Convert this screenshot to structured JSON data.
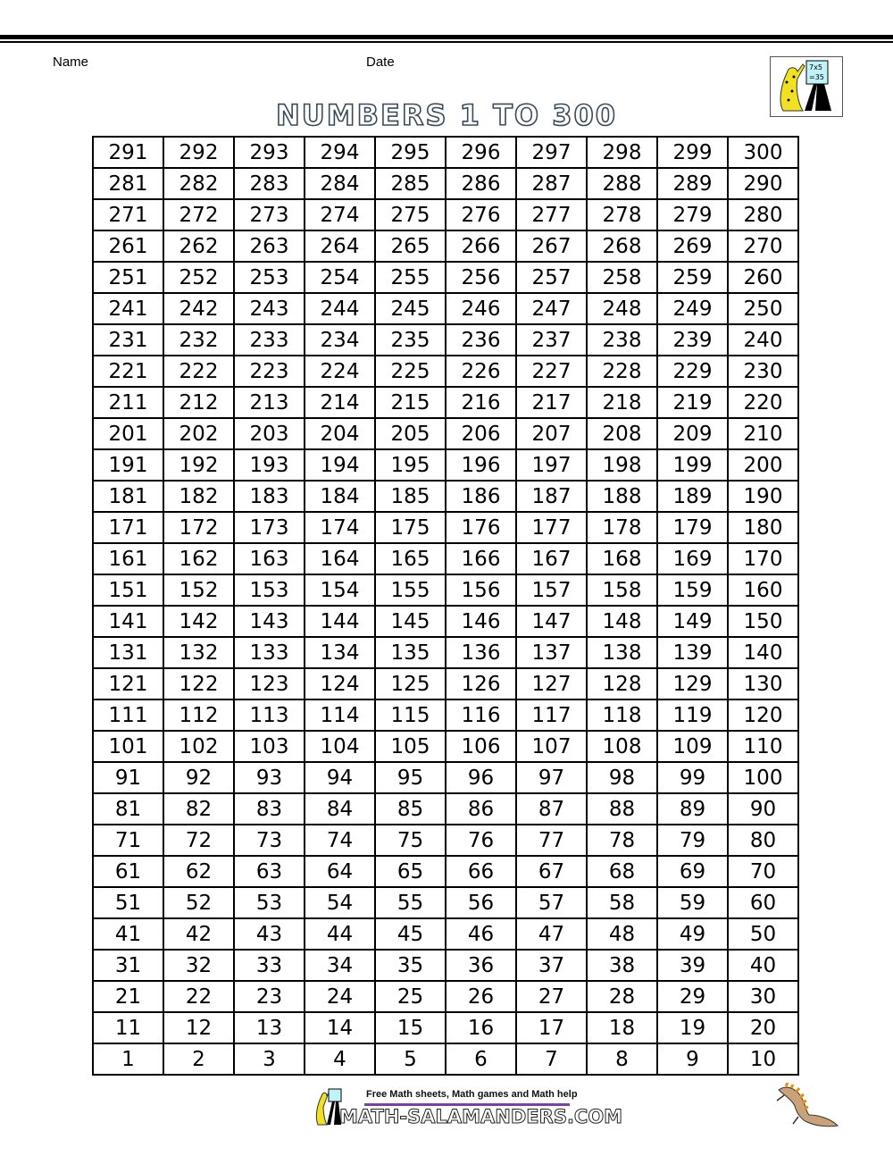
{
  "header": {
    "name_label": "Name",
    "date_label": "Date",
    "logo_text": "7x5 =35"
  },
  "title": "NUMBERS 1 TO 300",
  "table": {
    "rows": [
      [
        "291",
        "292",
        "293",
        "294",
        "295",
        "296",
        "297",
        "298",
        "299",
        "300"
      ],
      [
        "281",
        "282",
        "283",
        "284",
        "285",
        "286",
        "287",
        "288",
        "289",
        "290"
      ],
      [
        "271",
        "272",
        "273",
        "274",
        "275",
        "276",
        "277",
        "278",
        "279",
        "280"
      ],
      [
        "261",
        "262",
        "263",
        "264",
        "265",
        "266",
        "267",
        "268",
        "269",
        "270"
      ],
      [
        "251",
        "252",
        "253",
        "254",
        "255",
        "256",
        "257",
        "258",
        "259",
        "260"
      ],
      [
        "241",
        "242",
        "243",
        "244",
        "245",
        "246",
        "247",
        "248",
        "249",
        "250"
      ],
      [
        "231",
        "232",
        "233",
        "234",
        "235",
        "236",
        "237",
        "238",
        "239",
        "240"
      ],
      [
        "221",
        "222",
        "223",
        "224",
        "225",
        "226",
        "227",
        "228",
        "229",
        "230"
      ],
      [
        "211",
        "212",
        "213",
        "214",
        "215",
        "216",
        "217",
        "218",
        "219",
        "220"
      ],
      [
        "201",
        "202",
        "203",
        "204",
        "205",
        "206",
        "207",
        "208",
        "209",
        "210"
      ],
      [
        "191",
        "192",
        "193",
        "194",
        "195",
        "196",
        "197",
        "198",
        "199",
        "200"
      ],
      [
        "181",
        "182",
        "183",
        "184",
        "185",
        "186",
        "187",
        "188",
        "189",
        "190"
      ],
      [
        "171",
        "172",
        "173",
        "174",
        "175",
        "176",
        "177",
        "178",
        "179",
        "180"
      ],
      [
        "161",
        "162",
        "163",
        "164",
        "165",
        "166",
        "167",
        "168",
        "169",
        "170"
      ],
      [
        "151",
        "152",
        "153",
        "154",
        "155",
        "156",
        "157",
        "158",
        "159",
        "160"
      ],
      [
        "141",
        "142",
        "143",
        "144",
        "145",
        "146",
        "147",
        "148",
        "149",
        "150"
      ],
      [
        "131",
        "132",
        "133",
        "134",
        "135",
        "136",
        "137",
        "138",
        "139",
        "140"
      ],
      [
        "121",
        "122",
        "123",
        "124",
        "125",
        "126",
        "127",
        "128",
        "129",
        "130"
      ],
      [
        "111",
        "112",
        "113",
        "114",
        "115",
        "116",
        "117",
        "118",
        "119",
        "120"
      ],
      [
        "101",
        "102",
        "103",
        "104",
        "105",
        "106",
        "107",
        "108",
        "109",
        "110"
      ],
      [
        "91",
        "92",
        "93",
        "94",
        "95",
        "96",
        "97",
        "98",
        "99",
        "100"
      ],
      [
        "81",
        "82",
        "83",
        "84",
        "85",
        "86",
        "87",
        "88",
        "89",
        "90"
      ],
      [
        "71",
        "72",
        "73",
        "74",
        "75",
        "76",
        "77",
        "78",
        "79",
        "80"
      ],
      [
        "61",
        "62",
        "63",
        "64",
        "65",
        "66",
        "67",
        "68",
        "69",
        "70"
      ],
      [
        "51",
        "52",
        "53",
        "54",
        "55",
        "56",
        "57",
        "58",
        "59",
        "60"
      ],
      [
        "41",
        "42",
        "43",
        "44",
        "45",
        "46",
        "47",
        "48",
        "49",
        "50"
      ],
      [
        "31",
        "32",
        "33",
        "34",
        "35",
        "36",
        "37",
        "38",
        "39",
        "40"
      ],
      [
        "21",
        "22",
        "23",
        "24",
        "25",
        "26",
        "27",
        "28",
        "29",
        "30"
      ],
      [
        "11",
        "12",
        "13",
        "14",
        "15",
        "16",
        "17",
        "18",
        "19",
        "20"
      ],
      [
        "1",
        "2",
        "3",
        "4",
        "5",
        "6",
        "7",
        "8",
        "9",
        "10"
      ]
    ]
  },
  "footer": {
    "tagline": "Free Math sheets, Math games and Math help",
    "site": "MATH-SALAMANDERS.COM"
  },
  "colors": {
    "footer_bar": "#7b3fb0",
    "salamander": "#c9a27a",
    "salamander_spikes": "#f08a00",
    "leopard": "#f2e022"
  }
}
